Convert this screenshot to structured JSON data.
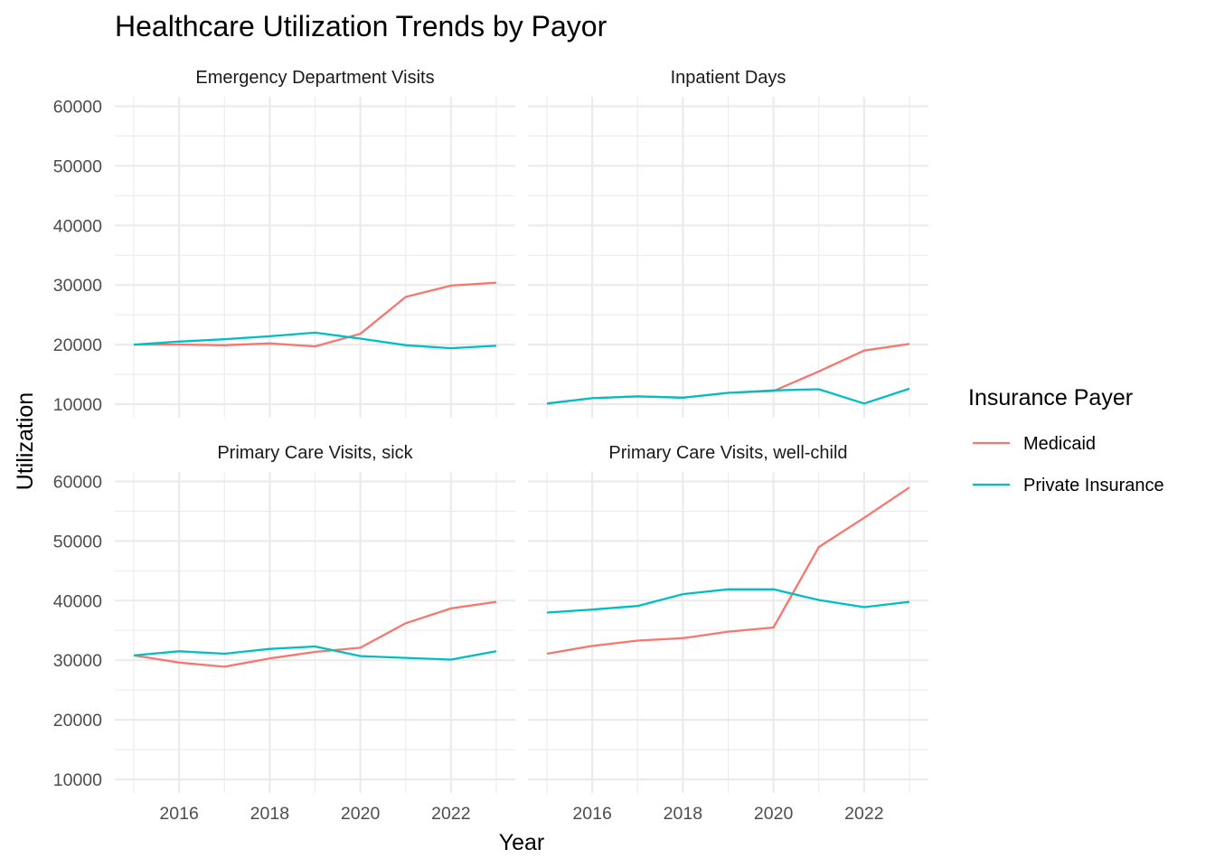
{
  "chart_data": {
    "type": "line",
    "title": "Healthcare Utilization Trends by Payor",
    "xlabel": "Year",
    "ylabel": "Utilization",
    "legend_title": "Insurance Payer",
    "legend_position": "right",
    "grid": true,
    "xlim": [
      2015,
      2023
    ],
    "ylim": [
      10000,
      60000
    ],
    "x_ticks": [
      2016,
      2018,
      2020,
      2022
    ],
    "y_ticks": [
      10000,
      20000,
      30000,
      40000,
      50000,
      60000
    ],
    "x": [
      2015,
      2016,
      2017,
      2018,
      2019,
      2020,
      2021,
      2022,
      2023
    ],
    "series_meta": [
      {
        "name": "Medicaid",
        "color": "#F8766D"
      },
      {
        "name": "Private Insurance",
        "color": "#00BFC4"
      }
    ],
    "facets": [
      {
        "title": "Emergency Department Visits",
        "series": [
          {
            "name": "Medicaid",
            "values": [
              20000,
              20000,
              19900,
              20200,
              19700,
              21800,
              28000,
              29900,
              30400
            ]
          },
          {
            "name": "Private Insurance",
            "values": [
              20000,
              20500,
              20900,
              21400,
              22000,
              21000,
              19900,
              19400,
              19800
            ]
          }
        ]
      },
      {
        "title": "Inpatient Days",
        "series": [
          {
            "name": "Medicaid",
            "values": [
              10100,
              11000,
              11300,
              11100,
              11900,
              12200,
              15500,
              19000,
              20100
            ]
          },
          {
            "name": "Private Insurance",
            "values": [
              10100,
              11000,
              11300,
              11100,
              11900,
              12300,
              12500,
              10100,
              12600
            ]
          }
        ]
      },
      {
        "title": "Primary Care Visits, sick",
        "series": [
          {
            "name": "Medicaid",
            "values": [
              30800,
              29600,
              28900,
              30300,
              31400,
              32100,
              36200,
              38700,
              39800
            ]
          },
          {
            "name": "Private Insurance",
            "values": [
              30800,
              31500,
              31100,
              31900,
              32300,
              30700,
              30400,
              30100,
              31500
            ]
          }
        ]
      },
      {
        "title": "Primary Care Visits, well-child",
        "series": [
          {
            "name": "Medicaid",
            "values": [
              31100,
              32400,
              33300,
              33700,
              34800,
              35500,
              49000,
              53900,
              59000
            ]
          },
          {
            "name": "Private Insurance",
            "values": [
              38000,
              38500,
              39100,
              41100,
              41900,
              41900,
              40100,
              38900,
              39800
            ]
          }
        ]
      }
    ]
  }
}
